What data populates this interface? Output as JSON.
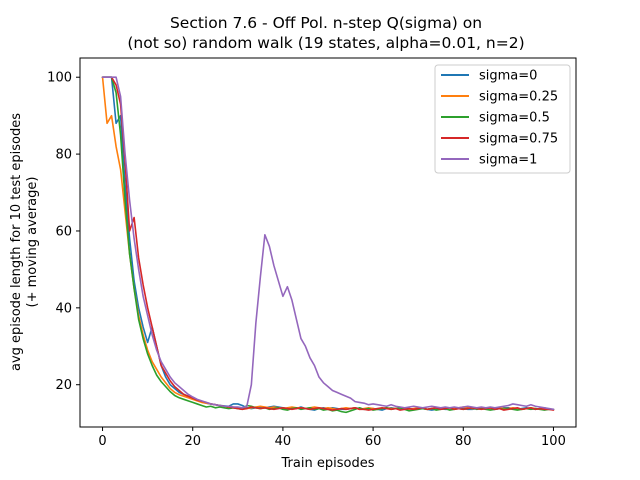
{
  "chart_data": {
    "type": "line",
    "title_lines": [
      "Section 7.6 - Off Pol. n-step Q(sigma) on",
      "(not so) random walk (19 states, alpha=0.01, n=2)"
    ],
    "xlabel": "Train episodes",
    "ylabel_lines": [
      "avg episode length for 10 test episodes",
      "(+ moving average)"
    ],
    "xlim": [
      -5,
      105
    ],
    "ylim": [
      9,
      105
    ],
    "xticks": [
      0,
      20,
      40,
      60,
      80,
      100
    ],
    "yticks": [
      20,
      40,
      60,
      80,
      100
    ],
    "grid": false,
    "legend_position": "top-right",
    "x": [
      0,
      1,
      2,
      3,
      4,
      5,
      6,
      7,
      8,
      9,
      10,
      11,
      12,
      13,
      14,
      15,
      16,
      17,
      18,
      19,
      20,
      21,
      22,
      23,
      24,
      25,
      26,
      27,
      28,
      29,
      30,
      31,
      32,
      33,
      34,
      35,
      36,
      37,
      38,
      39,
      40,
      41,
      42,
      43,
      44,
      45,
      46,
      47,
      48,
      49,
      50,
      51,
      52,
      53,
      54,
      55,
      56,
      57,
      58,
      59,
      60,
      61,
      62,
      63,
      64,
      65,
      66,
      67,
      68,
      69,
      70,
      71,
      72,
      73,
      74,
      75,
      76,
      77,
      78,
      79,
      80,
      81,
      82,
      83,
      84,
      85,
      86,
      87,
      88,
      89,
      90,
      91,
      92,
      93,
      94,
      95,
      96,
      97,
      98,
      99,
      100
    ],
    "series": [
      {
        "name": "sigma=0",
        "color": "#1f77b4",
        "values": [
          100,
          100,
          100,
          88,
          90,
          72,
          58,
          47,
          40,
          35,
          31,
          35,
          30,
          25,
          22,
          20,
          19,
          18,
          17.5,
          17,
          16.5,
          16,
          15.5,
          15.2,
          15,
          14.8,
          14.6,
          14.5,
          14.4,
          15,
          15,
          14.6,
          14,
          13.8,
          14,
          14.2,
          14,
          14.2,
          14.4,
          14.2,
          14,
          13.8,
          14,
          13.8,
          14.2,
          13.8,
          13.6,
          13.4,
          13.8,
          14,
          13.8,
          14,
          13.8,
          13.6,
          13.6,
          13.8,
          14,
          13.8,
          13.6,
          13.8,
          13.8,
          13.6,
          13.4,
          13.8,
          14,
          13.8,
          13.6,
          13.8,
          13.8,
          13.6,
          13.8,
          13.8,
          13.6,
          13.4,
          13.6,
          13.8,
          13.6,
          13.6,
          13.8,
          14,
          13.8,
          13.6,
          13.6,
          13.8,
          14,
          13.8,
          13.6,
          13.6,
          13.8,
          14,
          14,
          13.8,
          13.6,
          13.8,
          14,
          13.8,
          13.6,
          13.8,
          14,
          13.6,
          13.6
        ]
      },
      {
        "name": "sigma=0.25",
        "color": "#ff7f0e",
        "values": [
          100,
          88,
          90,
          82,
          76,
          65,
          54,
          45,
          38,
          33,
          29,
          26,
          24,
          22,
          20.5,
          19,
          18,
          17.4,
          17,
          16.6,
          16.2,
          15.8,
          15.4,
          15.2,
          15,
          14.8,
          14.6,
          14.4,
          14.4,
          14.2,
          14,
          14,
          13.8,
          14,
          14.2,
          14.4,
          14.2,
          14,
          14.2,
          14,
          13.8,
          14,
          14.2,
          14,
          14,
          13.8,
          14,
          14.2,
          14,
          13.8,
          14,
          13.8,
          13.6,
          13.8,
          14,
          13.8,
          14,
          13.6,
          13.8,
          14,
          13.8,
          13.6,
          13.8,
          14,
          13.8,
          13.8,
          14,
          13.8,
          13.6,
          13.8,
          14,
          13.8,
          13.6,
          13.8,
          14,
          14,
          13.8,
          13.6,
          13.8,
          14,
          14.2,
          14,
          13.8,
          13.8,
          14,
          13.8,
          13.6,
          13.8,
          14,
          13.8,
          13.8,
          14,
          13.8,
          13.6,
          13.8,
          14,
          13.8,
          13.6,
          13.8,
          13.6,
          13.6
        ]
      },
      {
        "name": "sigma=0.5",
        "color": "#2ca02c",
        "values": [
          100,
          100,
          100,
          96,
          85,
          68,
          54,
          45,
          37,
          32,
          28,
          25,
          22.5,
          20.8,
          19.5,
          18.2,
          17.2,
          16.6,
          16.2,
          15.8,
          15.4,
          15,
          14.6,
          14.2,
          14.4,
          14,
          14.2,
          14,
          13.8,
          14,
          13.8,
          13.6,
          14.6,
          14.4,
          14,
          13.8,
          14,
          13.6,
          13.8,
          14,
          13.6,
          13.4,
          13.8,
          14,
          13.6,
          13.8,
          14,
          13.6,
          13.8,
          13.4,
          13.6,
          13.2,
          13.4,
          13,
          12.8,
          13.2,
          13.6,
          14,
          13.6,
          13.8,
          13.4,
          13.6,
          13.8,
          14,
          13.6,
          13.8,
          14,
          13.6,
          13.2,
          13.4,
          13.6,
          13.8,
          13.6,
          13.8,
          13.4,
          13.6,
          13.8,
          13.4,
          13.6,
          13.8,
          13.6,
          13.8,
          14,
          13.6,
          13.8,
          13.6,
          13.4,
          13.6,
          13.8,
          13.6,
          13.8,
          13.6,
          13.4,
          13.6,
          13.8,
          13.6,
          13.8,
          13.6,
          13.4,
          13.6,
          13.6
        ]
      },
      {
        "name": "sigma=0.75",
        "color": "#d62728",
        "values": [
          100,
          100,
          100,
          98,
          93,
          78,
          60,
          63.5,
          53,
          46,
          40,
          35,
          30,
          25,
          23,
          21,
          19.5,
          18.5,
          17.5,
          17,
          16.5,
          16,
          15.7,
          15.4,
          15,
          14.8,
          14.6,
          14.4,
          14.2,
          14,
          13.8,
          13.6,
          13.8,
          14.2,
          14,
          13.8,
          14,
          13.8,
          13.6,
          13.8,
          14,
          13.8,
          13.6,
          13.8,
          14,
          13.8,
          13.6,
          13.8,
          14,
          13.8,
          13.6,
          13.4,
          13.6,
          13.8,
          13.6,
          13.8,
          14,
          13.6,
          13.6,
          13.4,
          13.6,
          13.8,
          14,
          13.8,
          13.6,
          13.8,
          13.4,
          13.6,
          13.8,
          13.6,
          13.8,
          14,
          13.6,
          13.8,
          14,
          13.6,
          13.8,
          14,
          13.6,
          13.8,
          13.6,
          13.8,
          14,
          13.8,
          13.6,
          13.8,
          14,
          13.6,
          13.8,
          13.4,
          13.6,
          13.8,
          14,
          13.6,
          13.8,
          14,
          13.6,
          13.8,
          13.6,
          13.6,
          13.4
        ]
      },
      {
        "name": "sigma=1",
        "color": "#9467bd",
        "values": [
          100,
          100,
          100,
          100,
          95,
          80,
          68,
          58,
          50,
          43,
          38,
          33,
          29,
          26,
          24,
          22,
          20.5,
          19.5,
          18.5,
          17.5,
          16.8,
          16.2,
          15.8,
          15.4,
          15,
          14.8,
          14.6,
          14.4,
          14.4,
          14.2,
          14.2,
          14,
          14.4,
          20,
          36,
          48,
          59,
          56,
          51,
          47,
          43,
          45.5,
          42,
          37,
          32,
          30,
          27,
          25,
          22,
          20.5,
          19.5,
          18.5,
          18,
          17.5,
          17,
          16.5,
          15.6,
          15.4,
          15.2,
          14.8,
          15,
          14.8,
          14.6,
          14.4,
          14.8,
          14.4,
          14.2,
          14,
          14.2,
          14.4,
          14.2,
          14,
          14.2,
          14.4,
          14.2,
          14,
          14.2,
          14,
          14.2,
          14,
          14.2,
          14.4,
          14.2,
          14,
          14.2,
          14,
          14.2,
          14,
          14.2,
          14.4,
          14.6,
          15,
          14.8,
          14.6,
          14.4,
          14.8,
          14.4,
          14.2,
          14,
          13.8,
          13.6
        ]
      }
    ]
  }
}
